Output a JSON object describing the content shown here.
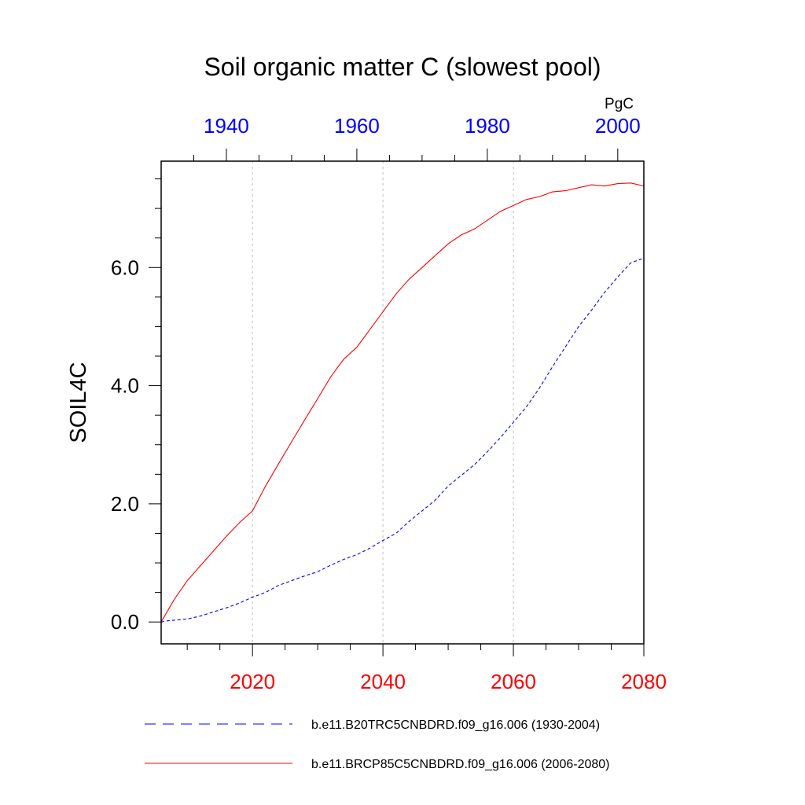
{
  "chart_data": {
    "type": "line",
    "title": "Soil organic matter C (slowest pool)",
    "ylabel": "SOIL4C",
    "units": "PgC",
    "ylim": [
      -0.37,
      7.8
    ],
    "y_ticks": [
      0.0,
      2.0,
      4.0,
      6.0
    ],
    "y_tick_labels": [
      "0.0",
      "2.0",
      "4.0",
      "6.0"
    ],
    "bottom_axis": {
      "range": [
        2006,
        2080
      ],
      "ticks": [
        2020,
        2040,
        2060,
        2080
      ],
      "tick_labels": [
        "2020",
        "2040",
        "2060",
        "2080"
      ],
      "color": "#ff0000"
    },
    "top_axis": {
      "range": [
        1930,
        2004
      ],
      "ticks": [
        1940,
        1960,
        1980,
        2000
      ],
      "tick_labels": [
        "1940",
        "1960",
        "1980",
        "2000"
      ],
      "color": "#0000ff"
    },
    "grid": "vertical dotted at bottom-axis major ticks",
    "legend_position": "bottom",
    "series": [
      {
        "name": "b.e11.B20TRC5CNBDRD.f09_g16.006 (1930-2004)",
        "axis": "top",
        "color": "#0000ff",
        "dash": "dashed",
        "x": [
          1930,
          1931,
          1932,
          1934,
          1936,
          1938,
          1940,
          1942,
          1944,
          1946,
          1948,
          1950,
          1952,
          1954,
          1956,
          1958,
          1960,
          1962,
          1964,
          1966,
          1968,
          1970,
          1972,
          1974,
          1976,
          1978,
          1980,
          1982,
          1984,
          1986,
          1988,
          1990,
          1992,
          1994,
          1996,
          1998,
          2000,
          2002,
          2004
        ],
        "y": [
          0.0,
          0.02,
          0.03,
          0.05,
          0.1,
          0.17,
          0.24,
          0.32,
          0.42,
          0.5,
          0.62,
          0.7,
          0.78,
          0.85,
          0.96,
          1.06,
          1.14,
          1.25,
          1.38,
          1.5,
          1.7,
          1.88,
          2.06,
          2.3,
          2.48,
          2.66,
          2.88,
          3.12,
          3.38,
          3.64,
          3.96,
          4.32,
          4.66,
          5.0,
          5.28,
          5.58,
          5.84,
          6.08,
          6.16
        ]
      },
      {
        "name": "b.e11.BRCP85C5CNBDRD.f09_g16.006 (2006-2080)",
        "axis": "bottom",
        "color": "#ff0000",
        "dash": "solid",
        "x": [
          2006,
          2008,
          2010,
          2012,
          2014,
          2016,
          2018,
          2020,
          2022,
          2024,
          2026,
          2028,
          2030,
          2032,
          2034,
          2036,
          2038,
          2040,
          2042,
          2044,
          2046,
          2048,
          2050,
          2052,
          2054,
          2056,
          2058,
          2060,
          2062,
          2064,
          2066,
          2068,
          2070,
          2072,
          2074,
          2076,
          2078,
          2080
        ],
        "y": [
          0.0,
          0.38,
          0.7,
          0.95,
          1.2,
          1.45,
          1.68,
          1.88,
          2.3,
          2.68,
          3.05,
          3.42,
          3.78,
          4.15,
          4.45,
          4.65,
          4.95,
          5.25,
          5.55,
          5.8,
          6.0,
          6.2,
          6.4,
          6.55,
          6.65,
          6.8,
          6.95,
          7.05,
          7.15,
          7.2,
          7.28,
          7.3,
          7.35,
          7.4,
          7.38,
          7.42,
          7.43,
          7.38
        ]
      }
    ]
  }
}
